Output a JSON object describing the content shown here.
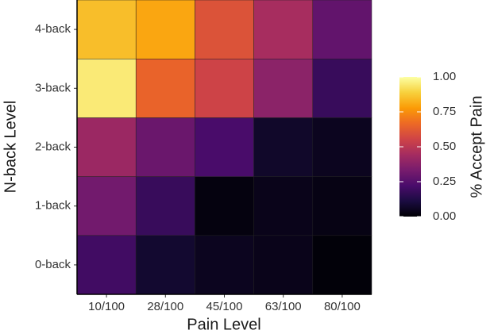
{
  "chart_data": {
    "type": "heatmap",
    "x_title": "Pain Level",
    "y_title": "N-back Level",
    "x_categories": [
      "10/100",
      "28/100",
      "45/100",
      "63/100",
      "80/100"
    ],
    "y_categories": [
      "0-back",
      "1-back",
      "2-back",
      "3-back",
      "4-back"
    ],
    "values": [
      [
        0.2,
        0.08,
        0.05,
        0.04,
        0.01
      ],
      [
        0.32,
        0.18,
        0.02,
        0.04,
        0.03
      ],
      [
        0.42,
        0.3,
        0.22,
        0.07,
        0.05
      ],
      [
        0.95,
        0.65,
        0.55,
        0.38,
        0.18
      ],
      [
        0.85,
        0.8,
        0.6,
        0.45,
        0.28
      ]
    ],
    "colorbar_title": "% Accept Pain",
    "clim": [
      0,
      1
    ],
    "cticks": [
      {
        "value": 0,
        "label": "0.00"
      },
      {
        "value": 0.25,
        "label": "0.25"
      },
      {
        "value": 0.5,
        "label": "0.50"
      },
      {
        "value": 0.75,
        "label": "0.75"
      },
      {
        "value": 1,
        "label": "1.00"
      }
    ],
    "colorscale": [
      "#000004",
      "#1b0c41",
      "#4a0c6b",
      "#781c6d",
      "#a52c60",
      "#cf4446",
      "#ed6925",
      "#fb9b06",
      "#f7d13d",
      "#fcffa4"
    ]
  }
}
